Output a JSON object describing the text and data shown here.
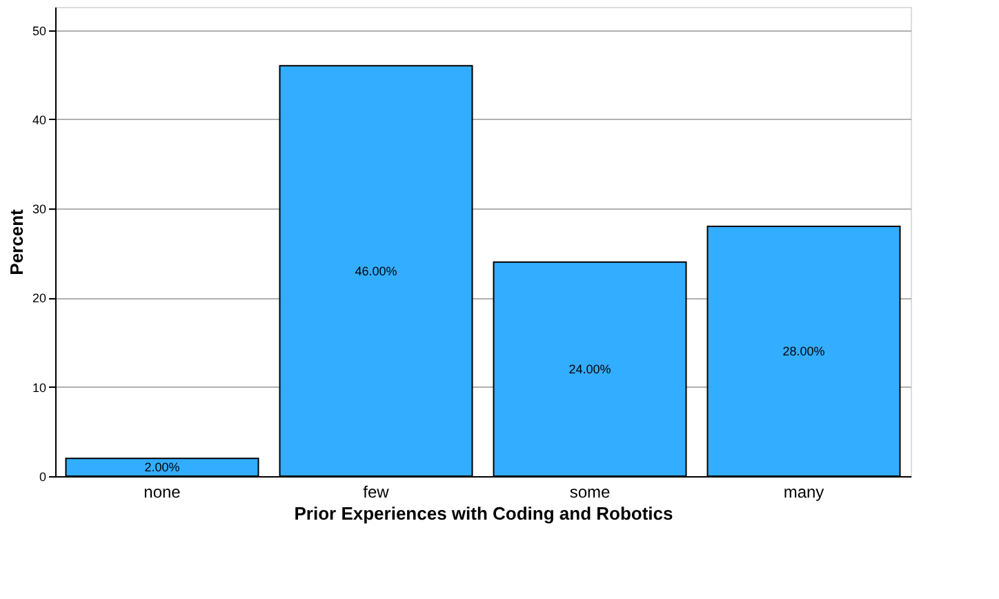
{
  "chart_data": {
    "type": "bar",
    "xlabel": "Prior Experiences with Coding and Robotics",
    "ylabel": "Percent",
    "categories": [
      "none",
      "few",
      "some",
      "many"
    ],
    "values": [
      2,
      46,
      24,
      28
    ],
    "value_labels": [
      "2.00%",
      "46.00%",
      "24.00%",
      "28.00%"
    ],
    "color": "#33adff",
    "ylim": [
      0,
      52.6
    ],
    "yticks": [
      0,
      10,
      20,
      30,
      40,
      50
    ],
    "grid": "y"
  }
}
